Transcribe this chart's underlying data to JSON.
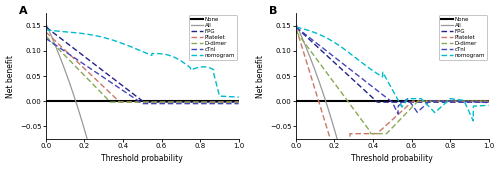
{
  "title_A": "A",
  "title_B": "B",
  "xlabel": "Threshold probability",
  "ylabel": "Net benefit",
  "xlim": [
    0.0,
    1.0
  ],
  "ylim_A": [
    -0.075,
    0.175
  ],
  "ylim_B": [
    -0.075,
    0.175
  ],
  "yticks_A": [
    -0.05,
    0.0,
    0.05,
    0.1,
    0.15
  ],
  "yticks_B": [
    -0.05,
    0.0,
    0.05,
    0.1,
    0.15
  ],
  "legend_labels": [
    "None",
    "All",
    "FPG",
    "Platelet",
    "D-dimer",
    "cTnI",
    "nomogram"
  ],
  "colors": {
    "None": "#000000",
    "All": "#999999",
    "FPG": "#222288",
    "Platelet": "#cc7766",
    "D-dimer": "#88aa55",
    "cTnI": "#4444bb",
    "nomogram": "#00bbcc"
  },
  "linestyles": {
    "None": "solid",
    "All": "solid",
    "FPG": "dashed",
    "Platelet": "dashed",
    "D-dimer": "dashed",
    "cTnI": "dashed",
    "nomogram": "dashed"
  },
  "linewidths": {
    "None": 1.5,
    "All": 0.9,
    "FPG": 1.0,
    "Platelet": 1.0,
    "D-dimer": 1.0,
    "cTnI": 1.0,
    "nomogram": 1.0
  }
}
